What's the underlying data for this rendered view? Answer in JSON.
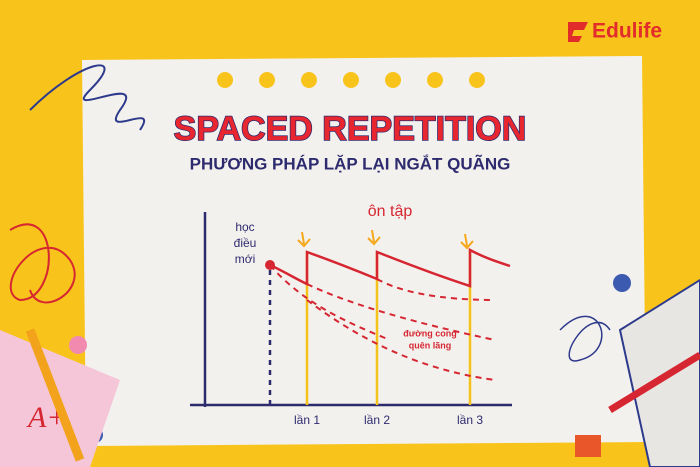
{
  "brand": "Edulife",
  "title": "SPACED REPETITION",
  "subtitle": "PHƯƠNG PHÁP LẶP LẠI NGẮT QUÃNG",
  "diagram": {
    "review_label": "ôn tập",
    "new_learning_label": [
      "học",
      "điều",
      "mới"
    ],
    "forgetting_curve_label": [
      "đường cong",
      "quên lãng"
    ],
    "x_labels": [
      "lần 1",
      "lần 2",
      "lần 3"
    ]
  },
  "grade": "A+"
}
